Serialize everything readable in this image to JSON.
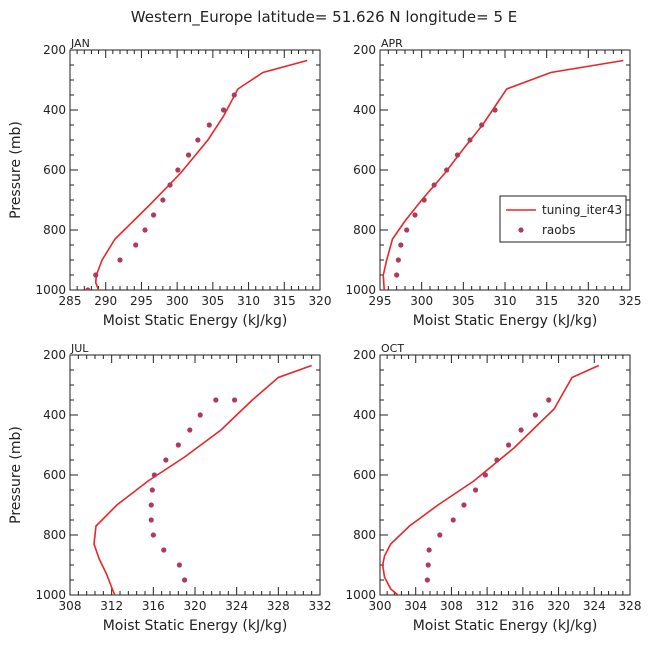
{
  "figure": {
    "title": "Western_Europe  latitude= 51.626 N longitude= 5 E"
  },
  "chart_data": [
    {
      "type": "line",
      "panel_label": "JAN",
      "xlabel": "Moist Static Energy (kJ/kg)",
      "ylabel": "Pressure (mb)",
      "xlim": [
        285,
        320
      ],
      "ylim": [
        200,
        1000
      ],
      "y_inverted": true,
      "xticks": [
        285,
        290,
        295,
        300,
        305,
        310,
        315,
        320
      ],
      "yticks": [
        200,
        400,
        600,
        800,
        1000
      ],
      "color_model": "#e8262a",
      "color_obs": "#b03a5b",
      "series": [
        {
          "name": "tuning_iter43",
          "kind": "line",
          "x": [
            289.0,
            288.6,
            288.7,
            289.5,
            291.3,
            296.0,
            300.5,
            304.3,
            306.5,
            308.5,
            312.0,
            318.2
          ],
          "y": [
            1000,
            975,
            950,
            900,
            830,
            720,
            610,
            500,
            420,
            330,
            275,
            235
          ]
        },
        {
          "name": "raobs",
          "kind": "scatter",
          "x": [
            287.5,
            288.6,
            292.0,
            294.2,
            295.5,
            296.7,
            298.0,
            299.0,
            300.1,
            301.6,
            302.9,
            304.5,
            306.5,
            308.0
          ],
          "y": [
            1000,
            950,
            900,
            850,
            800,
            750,
            700,
            650,
            600,
            550,
            500,
            450,
            400,
            350
          ]
        }
      ]
    },
    {
      "type": "line",
      "panel_label": "APR",
      "xlabel": "Moist Static Energy (kJ/kg)",
      "ylabel": "",
      "xlim": [
        295,
        325
      ],
      "ylim": [
        200,
        1000
      ],
      "y_inverted": true,
      "xticks": [
        295,
        300,
        305,
        310,
        315,
        320,
        325
      ],
      "yticks": [
        200,
        400,
        600,
        800,
        1000
      ],
      "legend": "right",
      "series": [
        {
          "name": "tuning_iter43",
          "kind": "line",
          "x": [
            295.5,
            295.4,
            295.8,
            296.5,
            298.0,
            300.0,
            302.8,
            305.0,
            307.3,
            310.2,
            315.5,
            324.2
          ],
          "y": [
            1000,
            950,
            900,
            830,
            770,
            700,
            610,
            530,
            450,
            330,
            275,
            235
          ]
        },
        {
          "name": "raobs",
          "kind": "scatter",
          "x": [
            297.0,
            297.2,
            297.5,
            298.2,
            299.2,
            300.3,
            301.5,
            303.0,
            304.3,
            305.8,
            307.2,
            308.8
          ],
          "y": [
            950,
            900,
            850,
            800,
            750,
            700,
            650,
            600,
            550,
            500,
            450,
            400
          ]
        }
      ]
    },
    {
      "type": "line",
      "panel_label": "JUL",
      "xlabel": "Moist Static Energy (kJ/kg)",
      "ylabel": "Pressure (mb)",
      "xlim": [
        308,
        332
      ],
      "ylim": [
        200,
        1000
      ],
      "y_inverted": true,
      "xticks": [
        308,
        312,
        316,
        320,
        324,
        328,
        332
      ],
      "yticks": [
        200,
        400,
        600,
        800,
        1000
      ],
      "series": [
        {
          "name": "tuning_iter43",
          "kind": "line",
          "x": [
            312.3,
            312.0,
            311.5,
            310.8,
            310.3,
            310.5,
            312.5,
            315.5,
            319.0,
            322.5,
            325.5,
            328.0,
            331.2
          ],
          "y": [
            1000,
            975,
            930,
            880,
            830,
            770,
            700,
            620,
            540,
            450,
            350,
            275,
            235
          ]
        },
        {
          "name": "raobs",
          "kind": "scatter",
          "x": [
            319.0,
            318.5,
            317.0,
            316.0,
            315.8,
            315.8,
            315.9,
            316.1,
            317.2,
            318.4,
            319.5,
            320.5,
            322.0,
            323.8
          ],
          "y": [
            950,
            900,
            850,
            800,
            750,
            700,
            650,
            600,
            550,
            500,
            450,
            400,
            350,
            350
          ]
        }
      ]
    },
    {
      "type": "line",
      "panel_label": "OCT",
      "xlabel": "Moist Static Energy (kJ/kg)",
      "ylabel": "",
      "xlim": [
        300,
        328
      ],
      "ylim": [
        200,
        1000
      ],
      "y_inverted": true,
      "xticks": [
        300,
        304,
        308,
        312,
        316,
        320,
        324,
        328
      ],
      "yticks": [
        200,
        400,
        600,
        800,
        1000
      ],
      "series": [
        {
          "name": "tuning_iter43",
          "kind": "line",
          "x": [
            302.0,
            301.2,
            300.5,
            300.3,
            300.5,
            301.2,
            303.3,
            306.5,
            310.5,
            315.0,
            319.5,
            321.5,
            324.5
          ],
          "y": [
            1000,
            980,
            940,
            900,
            870,
            830,
            770,
            700,
            620,
            510,
            380,
            275,
            235
          ]
        },
        {
          "name": "raobs",
          "kind": "scatter",
          "x": [
            305.3,
            305.4,
            305.5,
            306.7,
            308.2,
            309.4,
            310.7,
            311.8,
            313.1,
            314.4,
            315.8,
            317.4,
            318.9
          ],
          "y": [
            950,
            900,
            850,
            800,
            750,
            700,
            650,
            600,
            550,
            500,
            450,
            400,
            350
          ]
        }
      ]
    }
  ],
  "legend": {
    "entries": [
      {
        "label": "tuning_iter43",
        "kind": "line",
        "color": "#e8262a"
      },
      {
        "label": "raobs",
        "kind": "marker",
        "color": "#b03a5b"
      }
    ]
  }
}
